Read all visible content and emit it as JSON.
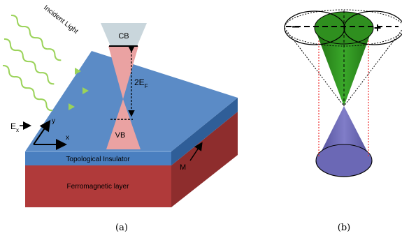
{
  "figure": {
    "panel_a": {
      "caption": "(a)",
      "incident_light_label": "Incident Light",
      "cb_label": "CB",
      "vb_label": "VB",
      "gap_label_main": "2E",
      "gap_label_sub": "F",
      "field_label_main": "E",
      "field_label_sub": "x",
      "axis_y_label": "y",
      "axis_x_label": "x",
      "ti_layer_label": "Topological Insulator",
      "fm_layer_label": "Ferromagnetic layer",
      "magnetization_label": "M"
    },
    "panel_b": {
      "caption": "(b)",
      "minus_label": "−",
      "plus_label": "+"
    },
    "colors": {
      "ti_top": "#5b8bc6",
      "ti_side": "#3f6fa8",
      "fm_front": "#b03a3a",
      "fm_side": "#8e2d2d",
      "cone_band": "#eaa2a2",
      "cb_box": "#c9d6dc",
      "light_wave": "#9bd35a",
      "upper_cone": "#2e8b1f",
      "lower_cone": "#6b68b5"
    }
  }
}
